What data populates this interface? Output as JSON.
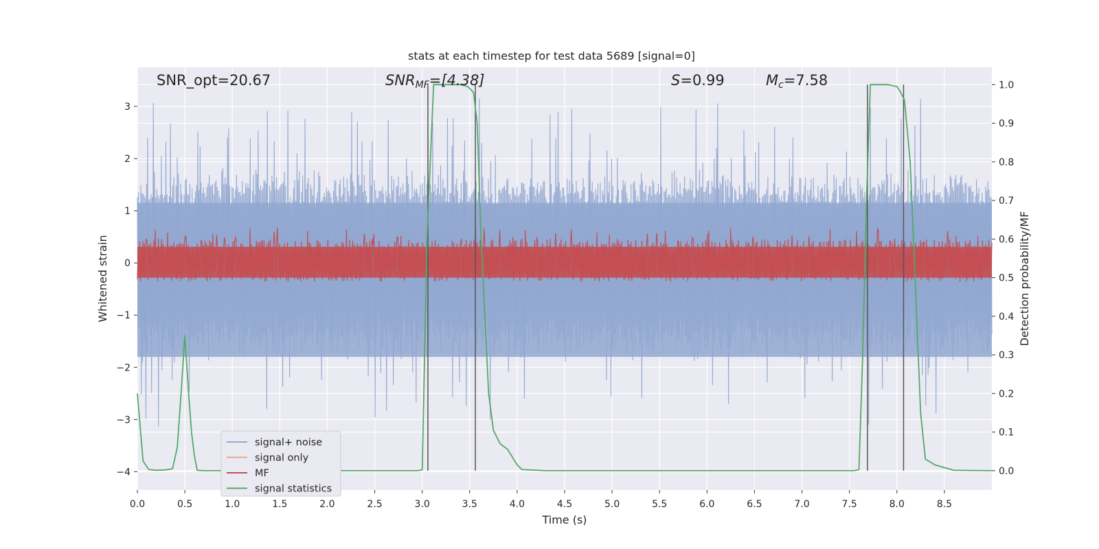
{
  "chart_data": {
    "type": "line",
    "title": "stats at each timestep for test data 5689 [signal=0]",
    "xlabel": "Time (s)",
    "ylabel_left": "Whitened strain",
    "ylabel_right": "Detection probability/MF",
    "xlim": [
      0,
      9.0
    ],
    "ylim_left": [
      -4.35,
      3.75
    ],
    "ylim_right": [
      -0.05,
      1.045
    ],
    "x_ticks": [
      "0.0",
      "0.5",
      "1.0",
      "1.5",
      "2.0",
      "2.5",
      "3.0",
      "3.5",
      "4.0",
      "4.5",
      "5.0",
      "5.5",
      "6.0",
      "6.5",
      "7.0",
      "7.5",
      "8.0",
      "8.5"
    ],
    "y_left_ticks": [
      "3",
      "2",
      "1",
      "0",
      "−1",
      "−2",
      "−3",
      "−4"
    ],
    "y_right_ticks": [
      "1.0",
      "0.9",
      "0.8",
      "0.7",
      "0.6",
      "0.5",
      "0.4",
      "0.3",
      "0.2",
      "0.1",
      "0.0"
    ],
    "grid": true,
    "legend_position": "lower-left",
    "annotations": {
      "snr_opt": "SNR_opt=20.67",
      "snr_mf_main": "SNR",
      "snr_mf_sub": "MF",
      "snr_mf_value": "=[4.38]",
      "s_main": "S",
      "s_value": "=0.99",
      "mc_main": "M",
      "mc_sub": "c",
      "mc_value": "=7.58"
    },
    "detection_markers_x": [
      3.06,
      3.56,
      7.69,
      8.07
    ],
    "series": [
      {
        "name": "signal+ noise",
        "axis": "left",
        "color": "#92a8d1",
        "note_visible": "dense noise band approx ±1.8 with peaks near ±3.3",
        "envelope": {
          "typical_amplitude": 1.8,
          "peak_amplitude": 3.4
        }
      },
      {
        "name": "signal only",
        "axis": "left",
        "color": "#e8a88a",
        "values_flat": 0
      },
      {
        "name": "MF",
        "axis": "right",
        "color": "#c44e52",
        "baseline": 0.52,
        "band": [
          0.5,
          0.59
        ],
        "peak": 0.63
      },
      {
        "name": "signal statistics",
        "axis": "right",
        "color": "#55a868",
        "x": [
          0.0,
          0.06,
          0.12,
          0.2,
          0.3,
          0.37,
          0.42,
          0.46,
          0.5,
          0.54,
          0.57,
          0.6,
          0.63,
          0.7,
          1.0,
          2.0,
          2.95,
          3.0,
          3.05,
          3.12,
          3.2,
          3.3,
          3.4,
          3.48,
          3.54,
          3.58,
          3.62,
          3.7,
          3.75,
          3.82,
          3.9,
          3.95,
          4.0,
          4.05,
          4.3,
          5.0,
          6.0,
          7.0,
          7.55,
          7.6,
          7.64,
          7.68,
          7.72,
          7.78,
          7.9,
          8.0,
          8.04,
          8.08,
          8.14,
          8.2,
          8.25,
          8.3,
          8.4,
          8.5,
          8.6,
          9.0
        ],
        "y": [
          0.2,
          0.025,
          0.003,
          0.001,
          0.002,
          0.005,
          0.06,
          0.2,
          0.35,
          0.2,
          0.1,
          0.04,
          0.001,
          0.0,
          0.0,
          0.0,
          0.0,
          0.002,
          0.6,
          1.0,
          1.0,
          1.0,
          1.0,
          0.995,
          0.98,
          0.9,
          0.6,
          0.2,
          0.105,
          0.07,
          0.055,
          0.035,
          0.015,
          0.003,
          0.0,
          0.0,
          0.0,
          0.0,
          0.0,
          0.003,
          0.3,
          0.7,
          1.0,
          1.0,
          1.0,
          0.995,
          0.98,
          0.96,
          0.8,
          0.45,
          0.15,
          0.03,
          0.015,
          0.008,
          0.001,
          0.0
        ]
      }
    ]
  }
}
